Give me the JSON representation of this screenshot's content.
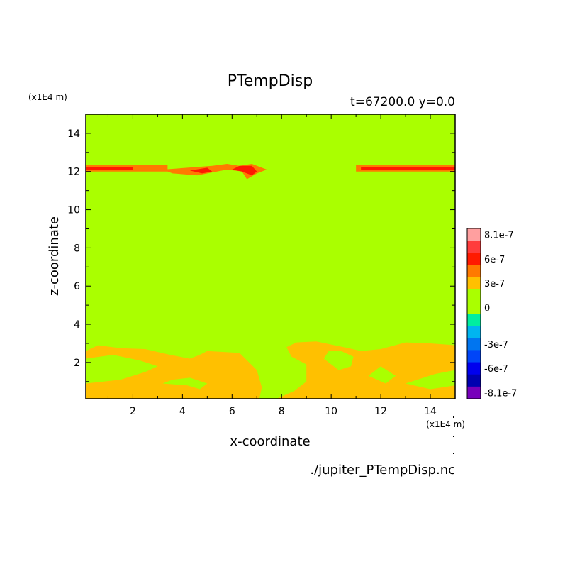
{
  "chart_data": {
    "type": "heatmap",
    "title": "PTempDisp",
    "subtitle": "t=67200.0 y=0.0",
    "xlabel": "x-coordinate",
    "ylabel": "z-coordinate",
    "x_unit": "(x1E4 m)",
    "y_unit": "(x1E4 m)",
    "source_file": "./jupiter_PTempDisp.nc",
    "xlim": [
      0.1,
      15
    ],
    "ylim": [
      0.1,
      15
    ],
    "xticks": [
      2,
      4,
      6,
      8,
      10,
      12,
      14
    ],
    "yticks": [
      2,
      4,
      6,
      8,
      10,
      12,
      14
    ],
    "background_color": "#aaff00",
    "colorbar": {
      "bins": [
        {
          "value": "8.1e-7",
          "color": "#ff9f9f"
        },
        {
          "value": "7e-7",
          "color": "#ff3c3c"
        },
        {
          "value": "6e-7",
          "color": "#ff1a00"
        },
        {
          "value": "4.5e-7",
          "color": "#ff7a00"
        },
        {
          "value": "3e-7",
          "color": "#ffc000"
        },
        {
          "value": "1e-7",
          "color": "#aaff00"
        },
        {
          "value": "0",
          "color": "#aaff00"
        },
        {
          "value": "-1e-7",
          "color": "#00eea0"
        },
        {
          "value": "-2e-7",
          "color": "#00b5f0"
        },
        {
          "value": "-3e-7",
          "color": "#0075f0"
        },
        {
          "value": "-4.5e-7",
          "color": "#0045f8"
        },
        {
          "value": "-6e-7",
          "color": "#0000ee"
        },
        {
          "value": "-7e-7",
          "color": "#0000b0"
        },
        {
          "value": "-8.1e-7",
          "color": "#7700bb"
        }
      ],
      "labels": [
        "8.1e-7",
        "6e-7",
        "3e-7",
        "0",
        "-3e-7",
        "-6e-7",
        "-8.1e-7"
      ]
    },
    "regions": [
      {
        "color": "#ffc000",
        "points": [
          [
            0.1,
            0.1
          ],
          [
            7.1,
            0.1
          ],
          [
            7.0,
            0.6
          ],
          [
            6.2,
            0.9
          ],
          [
            5.0,
            1.7
          ],
          [
            3.8,
            2.0
          ],
          [
            2.6,
            2.4
          ],
          [
            1.6,
            2.5
          ],
          [
            0.1,
            2.6
          ]
        ]
      },
      {
        "color": "#ffc000",
        "points": [
          [
            0.1,
            2.6
          ],
          [
            0.6,
            2.9
          ],
          [
            1.5,
            2.75
          ],
          [
            2.5,
            2.7
          ],
          [
            3.5,
            2.4
          ],
          [
            4.3,
            2.2
          ],
          [
            4.7,
            2.4
          ],
          [
            5.0,
            2.6
          ],
          [
            6.3,
            2.5
          ],
          [
            7.0,
            1.6
          ],
          [
            7.2,
            0.7
          ],
          [
            7.1,
            0.1
          ]
        ]
      },
      {
        "color": "#ffc000",
        "points": [
          [
            7.8,
            0.1
          ],
          [
            15,
            0.1
          ],
          [
            15,
            2.9
          ],
          [
            14.0,
            3.0
          ],
          [
            13.0,
            3.05
          ],
          [
            12.0,
            2.7
          ],
          [
            11.2,
            2.6
          ],
          [
            10.5,
            2.8
          ],
          [
            9.4,
            3.1
          ],
          [
            8.6,
            3.05
          ],
          [
            8.2,
            2.8
          ],
          [
            8.4,
            2.3
          ],
          [
            9.0,
            1.9
          ],
          [
            9.0,
            1.0
          ],
          [
            8.5,
            0.5
          ]
        ]
      },
      {
        "color": "#aaff00",
        "points": [
          [
            0.1,
            0.9
          ],
          [
            1.5,
            1.1
          ],
          [
            2.5,
            1.5
          ],
          [
            3.0,
            1.8
          ],
          [
            2.3,
            2.1
          ],
          [
            1.2,
            2.4
          ],
          [
            0.1,
            2.2
          ]
        ]
      },
      {
        "color": "#aaff00",
        "points": [
          [
            3.2,
            0.9
          ],
          [
            4.2,
            0.8
          ],
          [
            4.7,
            0.6
          ],
          [
            5.0,
            0.9
          ],
          [
            4.3,
            1.2
          ],
          [
            3.6,
            1.1
          ]
        ]
      },
      {
        "color": "#aaff00",
        "points": [
          [
            9.7,
            2.2
          ],
          [
            10.3,
            1.6
          ],
          [
            10.8,
            1.8
          ],
          [
            10.9,
            2.3
          ],
          [
            10.4,
            2.6
          ],
          [
            9.9,
            2.6
          ]
        ]
      },
      {
        "color": "#aaff00",
        "points": [
          [
            11.5,
            1.3
          ],
          [
            12.2,
            0.9
          ],
          [
            12.6,
            1.3
          ],
          [
            12.0,
            1.8
          ]
        ]
      },
      {
        "color": "#aaff00",
        "points": [
          [
            13.0,
            0.9
          ],
          [
            14.0,
            0.6
          ],
          [
            15,
            0.8
          ],
          [
            15,
            1.6
          ],
          [
            14.2,
            1.4
          ]
        ]
      },
      {
        "color": "#ff7a00",
        "points": [
          [
            3.2,
            12.1
          ],
          [
            3.6,
            11.9
          ],
          [
            4.6,
            11.8
          ],
          [
            5.8,
            12.1
          ],
          [
            6.4,
            12.0
          ],
          [
            6.6,
            11.6
          ],
          [
            7.0,
            11.9
          ],
          [
            7.4,
            12.1
          ],
          [
            6.8,
            12.4
          ],
          [
            6.3,
            12.3
          ],
          [
            5.8,
            12.4
          ],
          [
            5.2,
            12.3
          ],
          [
            4.2,
            12.2
          ]
        ]
      },
      {
        "color": "#ff1a00",
        "points": [
          [
            4.3,
            12.05
          ],
          [
            4.8,
            11.9
          ],
          [
            5.2,
            12.0
          ],
          [
            5.0,
            12.2
          ]
        ]
      },
      {
        "color": "#ff1a00",
        "points": [
          [
            6.0,
            12.1
          ],
          [
            6.4,
            12.0
          ],
          [
            6.8,
            11.8
          ],
          [
            7.0,
            12.0
          ],
          [
            6.8,
            12.3
          ],
          [
            6.3,
            12.3
          ]
        ]
      }
    ],
    "bands": [
      {
        "color": "#ff7a00",
        "x0": 0.1,
        "x1": 3.4,
        "y0": 12.0,
        "y1": 12.35
      },
      {
        "color": "#ff1a00",
        "x0": 0.1,
        "x1": 2.0,
        "y0": 12.1,
        "y1": 12.25
      },
      {
        "color": "#ff7a00",
        "x0": 11.0,
        "x1": 15,
        "y0": 12.0,
        "y1": 12.35
      },
      {
        "color": "#ff1a00",
        "x0": 11.2,
        "x1": 15,
        "y0": 12.1,
        "y1": 12.25
      }
    ]
  }
}
